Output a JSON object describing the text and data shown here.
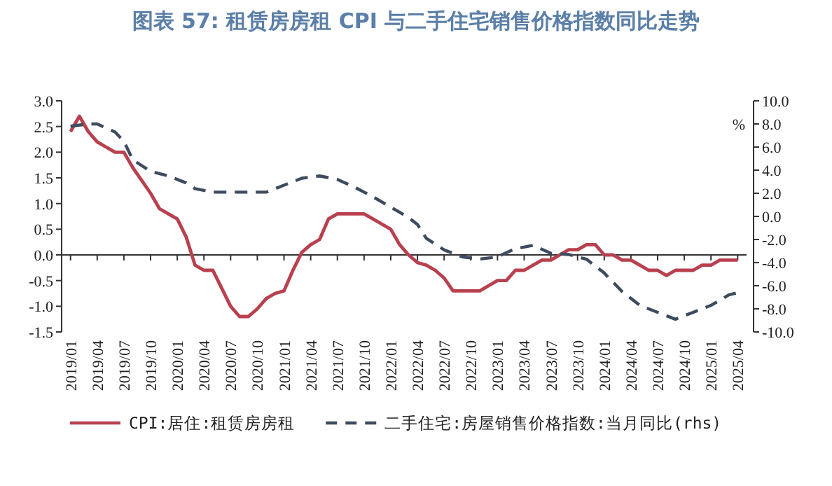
{
  "chart_data": {
    "type": "line",
    "title": "图表 57: 租赁房房租 CPI 与二手住宅销售价格指数同比走势",
    "y2label": "%",
    "legend": "bottom",
    "xlim": [
      "2018-12",
      "2025-05"
    ],
    "xticks": [
      {
        "value": "2019-01",
        "label": "2019/01"
      },
      {
        "value": "2019-04",
        "label": "2019/04"
      },
      {
        "value": "2019-07",
        "label": "2019/07"
      },
      {
        "value": "2019-10",
        "label": "2019/10"
      },
      {
        "value": "2020-01",
        "label": "2020/01"
      },
      {
        "value": "2020-04",
        "label": "2020/04"
      },
      {
        "value": "2020-07",
        "label": "2020/07"
      },
      {
        "value": "2020-10",
        "label": "2020/10"
      },
      {
        "value": "2021-01",
        "label": "2021/01"
      },
      {
        "value": "2021-04",
        "label": "2021/04"
      },
      {
        "value": "2021-07",
        "label": "2021/07"
      },
      {
        "value": "2021-10",
        "label": "2021/10"
      },
      {
        "value": "2022-01",
        "label": "2022/01"
      },
      {
        "value": "2022-04",
        "label": "2022/04"
      },
      {
        "value": "2022-07",
        "label": "2022/07"
      },
      {
        "value": "2022-10",
        "label": "2022/10"
      },
      {
        "value": "2023-01",
        "label": "2023/01"
      },
      {
        "value": "2023-04",
        "label": "2023/04"
      },
      {
        "value": "2023-07",
        "label": "2023/07"
      },
      {
        "value": "2023-10",
        "label": "2023/10"
      },
      {
        "value": "2024-01",
        "label": "2024/01"
      },
      {
        "value": "2024-04",
        "label": "2024/04"
      },
      {
        "value": "2024-07",
        "label": "2024/07"
      },
      {
        "value": "2024-10",
        "label": "2024/10"
      },
      {
        "value": "2025-01",
        "label": "2025/01"
      },
      {
        "value": "2025-04",
        "label": "2025/04"
      }
    ],
    "ylim": [
      -1.5,
      3
    ],
    "yticks": [
      {
        "value": -1.5,
        "label": "-1.5"
      },
      {
        "value": -1,
        "label": "-1.0"
      },
      {
        "value": -0.5,
        "label": "-0.5"
      },
      {
        "value": 0,
        "label": "0.0"
      },
      {
        "value": 0.5,
        "label": "0.5"
      },
      {
        "value": 1,
        "label": "1.0"
      },
      {
        "value": 1.5,
        "label": "1.5"
      },
      {
        "value": 2,
        "label": "2.0"
      },
      {
        "value": 2.5,
        "label": "2.5"
      },
      {
        "value": 3,
        "label": "3.0"
      }
    ],
    "y2lim": [
      -10,
      10
    ],
    "y2ticks": [
      {
        "value": -10,
        "label": "-10.0"
      },
      {
        "value": -8,
        "label": "-8.0"
      },
      {
        "value": -6,
        "label": "-6.0"
      },
      {
        "value": -4,
        "label": "-4.0"
      },
      {
        "value": -2,
        "label": "-2.0"
      },
      {
        "value": 0,
        "label": "0.0"
      },
      {
        "value": 2,
        "label": "2.0"
      },
      {
        "value": 4,
        "label": "4.0"
      },
      {
        "value": 6,
        "label": "6.0"
      },
      {
        "value": 8,
        "label": "8.0"
      },
      {
        "value": 10,
        "label": "10.0"
      }
    ],
    "series": [
      {
        "name": "CPI:居住:租赁房房租",
        "color": "#b9404f",
        "line_style": "solid",
        "x": [
          "2019-01",
          "2019-02",
          "2019-03",
          "2019-04",
          "2019-05",
          "2019-06",
          "2019-07",
          "2019-08",
          "2019-09",
          "2019-10",
          "2019-11",
          "2019-12",
          "2020-01",
          "2020-02",
          "2020-03",
          "2020-04",
          "2020-05",
          "2020-06",
          "2020-07",
          "2020-08",
          "2020-09",
          "2020-10",
          "2020-11",
          "2020-12",
          "2021-01",
          "2021-02",
          "2021-03",
          "2021-04",
          "2021-05",
          "2021-06",
          "2021-07",
          "2021-08",
          "2021-09",
          "2021-10",
          "2021-11",
          "2021-12",
          "2022-01",
          "2022-02",
          "2022-03",
          "2022-04",
          "2022-05",
          "2022-06",
          "2022-07",
          "2022-08",
          "2022-09",
          "2022-10",
          "2022-11",
          "2022-12",
          "2023-01",
          "2023-02",
          "2023-03",
          "2023-04",
          "2023-05",
          "2023-06",
          "2023-07",
          "2023-08",
          "2023-09",
          "2023-10",
          "2023-11",
          "2023-12",
          "2024-01",
          "2024-02",
          "2024-03",
          "2024-04",
          "2024-05",
          "2024-06",
          "2024-07",
          "2024-08",
          "2024-09",
          "2024-10",
          "2024-11",
          "2024-12",
          "2025-01",
          "2025-02",
          "2025-03",
          "2025-04"
        ],
        "values": [
          2.4,
          2.7,
          2.4,
          2.2,
          2.1,
          2.0,
          2.0,
          1.7,
          1.45,
          1.2,
          0.9,
          0.8,
          0.7,
          0.35,
          -0.2,
          -0.3,
          -0.3,
          -0.65,
          -1.0,
          -1.2,
          -1.2,
          -1.05,
          -0.85,
          -0.75,
          -0.7,
          -0.3,
          0.05,
          0.2,
          0.3,
          0.7,
          0.8,
          0.8,
          0.8,
          0.8,
          0.7,
          0.6,
          0.5,
          0.2,
          0.0,
          -0.15,
          -0.2,
          -0.3,
          -0.45,
          -0.7,
          -0.7,
          -0.7,
          -0.7,
          -0.6,
          -0.5,
          -0.5,
          -0.3,
          -0.3,
          -0.2,
          -0.1,
          -0.1,
          0.0,
          0.1,
          0.1,
          0.2,
          0.2,
          0.0,
          0.0,
          -0.1,
          -0.1,
          -0.2,
          -0.3,
          -0.3,
          -0.4,
          -0.3,
          -0.3,
          -0.3,
          -0.2,
          -0.2,
          -0.1,
          -0.1,
          -0.1
        ]
      },
      {
        "name": "二手住宅:房屋销售价格指数:当月同比(rhs)",
        "color": "#3d4b5e",
        "line_style": "dashed",
        "axis": "y2",
        "x": [
          "2019-01",
          "2019-03",
          "2019-04",
          "2019-06",
          "2019-07",
          "2019-08",
          "2019-10",
          "2019-12",
          "2020-02",
          "2020-03",
          "2020-05",
          "2020-08",
          "2020-11",
          "2021-01",
          "2021-03",
          "2021-05",
          "2021-07",
          "2021-09",
          "2021-11",
          "2022-01",
          "2022-03",
          "2022-04",
          "2022-05",
          "2022-07",
          "2022-09",
          "2022-11",
          "2023-01",
          "2023-03",
          "2023-05",
          "2023-07",
          "2023-09",
          "2023-11",
          "2024-01",
          "2024-03",
          "2024-05",
          "2024-07",
          "2024-09",
          "2024-11",
          "2025-01",
          "2025-03",
          "2025-04"
        ],
        "values": [
          7.8,
          8.0,
          8.0,
          7.3,
          6.5,
          4.9,
          3.9,
          3.5,
          2.9,
          2.4,
          2.1,
          2.1,
          2.1,
          2.7,
          3.3,
          3.5,
          3.2,
          2.5,
          1.7,
          0.8,
          -0.1,
          -0.7,
          -1.9,
          -2.9,
          -3.5,
          -3.7,
          -3.5,
          -2.8,
          -2.5,
          -3.2,
          -3.3,
          -3.7,
          -4.9,
          -6.5,
          -7.7,
          -8.3,
          -8.9,
          -8.3,
          -7.7,
          -6.8,
          -6.6
        ]
      }
    ]
  }
}
